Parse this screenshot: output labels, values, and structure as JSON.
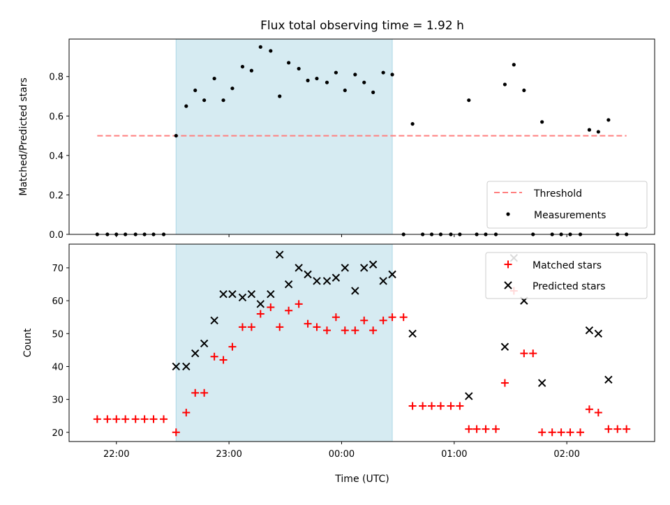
{
  "figure": {
    "title": "Flux total observing time = 1.92 h",
    "xlabel": "Time (UTC)",
    "x_tick_labels": [
      "22:00",
      "23:00",
      "00:00",
      "01:00",
      "02:00"
    ],
    "x_tick_hours": [
      22,
      23,
      24,
      25,
      26
    ],
    "xlim": [
      21.58,
      26.78
    ],
    "observing_window": [
      22.53,
      24.45
    ],
    "colors": {
      "threshold": "#ff7f7f",
      "shade": "#add8e6",
      "matched": "#ff0000",
      "predicted": "#000000",
      "measurement": "#000000"
    }
  },
  "chart_data": [
    {
      "type": "scatter",
      "ylabel": "Matched/Predicted stars",
      "ylim": [
        0,
        0.99
      ],
      "yticks": [
        0.0,
        0.2,
        0.4,
        0.6,
        0.8
      ],
      "y_tick_labels": [
        "0.0",
        "0.2",
        "0.4",
        "0.6",
        "0.8"
      ],
      "threshold": {
        "name": "Threshold",
        "value": 0.5,
        "x_range": [
          21.83,
          26.53
        ]
      },
      "legend": {
        "placement": "lower-right",
        "entries": [
          "Threshold",
          "Measurements"
        ]
      },
      "series": [
        {
          "name": "Measurements",
          "points": [
            [
              21.83,
              0
            ],
            [
              21.92,
              0
            ],
            [
              22.0,
              0
            ],
            [
              22.08,
              0
            ],
            [
              22.17,
              0
            ],
            [
              22.25,
              0
            ],
            [
              22.33,
              0
            ],
            [
              22.42,
              0
            ],
            [
              22.53,
              0.5
            ],
            [
              22.62,
              0.65
            ],
            [
              22.7,
              0.73
            ],
            [
              22.78,
              0.68
            ],
            [
              22.87,
              0.79
            ],
            [
              22.95,
              0.68
            ],
            [
              23.03,
              0.74
            ],
            [
              23.12,
              0.85
            ],
            [
              23.2,
              0.83
            ],
            [
              23.28,
              0.95
            ],
            [
              23.37,
              0.93
            ],
            [
              23.45,
              0.7
            ],
            [
              23.53,
              0.87
            ],
            [
              23.62,
              0.84
            ],
            [
              23.7,
              0.78
            ],
            [
              23.78,
              0.79
            ],
            [
              23.87,
              0.77
            ],
            [
              23.95,
              0.82
            ],
            [
              24.03,
              0.73
            ],
            [
              24.12,
              0.81
            ],
            [
              24.2,
              0.77
            ],
            [
              24.28,
              0.72
            ],
            [
              24.37,
              0.82
            ],
            [
              24.45,
              0.81
            ],
            [
              24.55,
              0
            ],
            [
              24.63,
              0.56
            ],
            [
              24.72,
              0
            ],
            [
              24.8,
              0
            ],
            [
              24.88,
              0
            ],
            [
              24.97,
              0
            ],
            [
              25.05,
              0
            ],
            [
              25.13,
              0.68
            ],
            [
              25.2,
              0
            ],
            [
              25.28,
              0
            ],
            [
              25.37,
              0
            ],
            [
              25.45,
              0.76
            ],
            [
              25.53,
              0.86
            ],
            [
              25.62,
              0.73
            ],
            [
              25.7,
              0
            ],
            [
              25.78,
              0.57
            ],
            [
              25.87,
              0
            ],
            [
              25.95,
              0
            ],
            [
              26.03,
              0
            ],
            [
              26.12,
              0
            ],
            [
              26.2,
              0.53
            ],
            [
              26.28,
              0.52
            ],
            [
              26.37,
              0.58
            ],
            [
              26.45,
              0
            ],
            [
              26.53,
              0
            ]
          ]
        }
      ]
    },
    {
      "type": "scatter",
      "ylabel": "Count",
      "ylim": [
        17.2,
        77.2
      ],
      "yticks": [
        20,
        30,
        40,
        50,
        60,
        70
      ],
      "y_tick_labels": [
        "20",
        "30",
        "40",
        "50",
        "60",
        "70"
      ],
      "legend": {
        "placement": "upper-right",
        "entries": [
          "Matched stars",
          "Predicted stars"
        ]
      },
      "series": [
        {
          "name": "Matched stars",
          "marker": "plus",
          "points": [
            [
              21.83,
              24
            ],
            [
              21.92,
              24
            ],
            [
              22.0,
              24
            ],
            [
              22.08,
              24
            ],
            [
              22.17,
              24
            ],
            [
              22.25,
              24
            ],
            [
              22.33,
              24
            ],
            [
              22.42,
              24
            ],
            [
              22.53,
              20
            ],
            [
              22.62,
              26
            ],
            [
              22.7,
              32
            ],
            [
              22.78,
              32
            ],
            [
              22.87,
              43
            ],
            [
              22.95,
              42
            ],
            [
              23.03,
              46
            ],
            [
              23.12,
              52
            ],
            [
              23.2,
              52
            ],
            [
              23.28,
              56
            ],
            [
              23.37,
              58
            ],
            [
              23.45,
              52
            ],
            [
              23.53,
              57
            ],
            [
              23.62,
              59
            ],
            [
              23.7,
              53
            ],
            [
              23.78,
              52
            ],
            [
              23.87,
              51
            ],
            [
              23.95,
              55
            ],
            [
              24.03,
              51
            ],
            [
              24.12,
              51
            ],
            [
              24.2,
              54
            ],
            [
              24.28,
              51
            ],
            [
              24.37,
              54
            ],
            [
              24.45,
              55
            ],
            [
              24.55,
              55
            ],
            [
              24.63,
              28
            ],
            [
              24.72,
              28
            ],
            [
              24.8,
              28
            ],
            [
              24.88,
              28
            ],
            [
              24.97,
              28
            ],
            [
              25.05,
              28
            ],
            [
              25.13,
              21
            ],
            [
              25.2,
              21
            ],
            [
              25.28,
              21
            ],
            [
              25.37,
              21
            ],
            [
              25.45,
              35
            ],
            [
              25.53,
              63
            ],
            [
              25.62,
              44
            ],
            [
              25.7,
              44
            ],
            [
              25.78,
              20
            ],
            [
              25.87,
              20
            ],
            [
              25.95,
              20
            ],
            [
              26.03,
              20
            ],
            [
              26.12,
              20
            ],
            [
              26.2,
              27
            ],
            [
              26.28,
              26
            ],
            [
              26.37,
              21
            ],
            [
              26.45,
              21
            ],
            [
              26.53,
              21
            ]
          ]
        },
        {
          "name": "Predicted stars",
          "marker": "x",
          "points": [
            [
              22.53,
              40
            ],
            [
              22.62,
              40
            ],
            [
              22.7,
              44
            ],
            [
              22.78,
              47
            ],
            [
              22.87,
              54
            ],
            [
              22.95,
              62
            ],
            [
              23.03,
              62
            ],
            [
              23.12,
              61
            ],
            [
              23.2,
              62
            ],
            [
              23.28,
              59
            ],
            [
              23.37,
              62
            ],
            [
              23.45,
              74
            ],
            [
              23.53,
              65
            ],
            [
              23.62,
              70
            ],
            [
              23.7,
              68
            ],
            [
              23.78,
              66
            ],
            [
              23.87,
              66
            ],
            [
              23.95,
              67
            ],
            [
              24.03,
              70
            ],
            [
              24.12,
              63
            ],
            [
              24.2,
              70
            ],
            [
              24.28,
              71
            ],
            [
              24.37,
              66
            ],
            [
              24.45,
              68
            ],
            [
              24.63,
              50
            ],
            [
              25.13,
              31
            ],
            [
              25.45,
              46
            ],
            [
              25.53,
              73
            ],
            [
              25.62,
              60
            ],
            [
              25.78,
              35
            ],
            [
              26.2,
              51
            ],
            [
              26.28,
              50
            ],
            [
              26.37,
              36
            ]
          ]
        }
      ]
    }
  ]
}
